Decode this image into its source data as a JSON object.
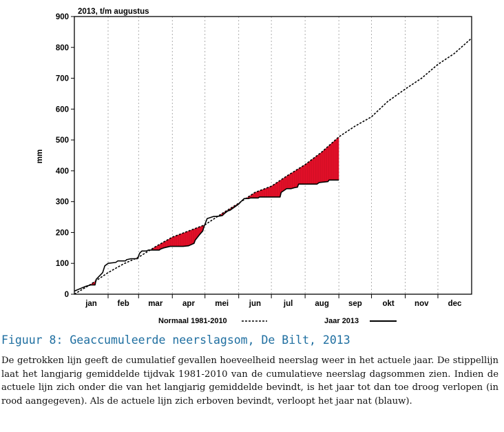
{
  "chart_data": {
    "type": "line",
    "title": "2013, t/m augustus",
    "ylabel": "mm",
    "xlabel": "",
    "ylim": [
      0,
      900
    ],
    "xlim": [
      0,
      365
    ],
    "yticks": [
      0,
      100,
      200,
      300,
      400,
      500,
      600,
      700,
      800,
      900
    ],
    "months": [
      "jan",
      "feb",
      "mar",
      "apr",
      "mei",
      "jun",
      "jul",
      "aug",
      "sep",
      "okt",
      "nov",
      "dec"
    ],
    "grid": true,
    "legend_position": "bottom",
    "deficit_color": "#e8102a",
    "series": [
      {
        "name": "Normaal 1981-2010",
        "style": "dashed",
        "x": [
          0,
          15,
          31,
          45,
          59,
          75,
          90,
          105,
          120,
          135,
          151,
          166,
          181,
          196,
          212,
          227,
          243,
          258,
          273,
          288,
          304,
          319,
          334,
          349,
          365
        ],
        "y": [
          0,
          32,
          70,
          98,
          120,
          155,
          185,
          205,
          225,
          260,
          295,
          330,
          350,
          385,
          420,
          460,
          510,
          545,
          575,
          625,
          665,
          700,
          745,
          780,
          830
        ]
      },
      {
        "name": "Jaar 2013",
        "style": "solid",
        "x": [
          0,
          10,
          15,
          19,
          20,
          26,
          28,
          31,
          38,
          40,
          47,
          48,
          52,
          58,
          60,
          62,
          66,
          68,
          70,
          75,
          78,
          79,
          82,
          88,
          95,
          100,
          105,
          110,
          111,
          115,
          118,
          119,
          122,
          128,
          130,
          133,
          136,
          138,
          141,
          143,
          147,
          151,
          153,
          156,
          160,
          162,
          169,
          170,
          175,
          180,
          182,
          189,
          190,
          195,
          199,
          202,
          205,
          206,
          210,
          215,
          223,
          225,
          233,
          234,
          243
        ],
        "y": [
          10,
          25,
          30,
          30,
          48,
          70,
          92,
          100,
          103,
          108,
          108,
          112,
          115,
          115,
          133,
          140,
          140,
          143,
          143,
          143,
          143,
          146,
          150,
          155,
          155,
          155,
          157,
          165,
          175,
          193,
          205,
          218,
          245,
          252,
          252,
          253,
          255,
          262,
          270,
          272,
          282,
          292,
          300,
          310,
          310,
          312,
          312,
          315,
          315,
          315,
          315,
          315,
          330,
          342,
          342,
          345,
          347,
          357,
          357,
          357,
          357,
          362,
          365,
          370,
          370
        ]
      }
    ]
  },
  "caption": {
    "title": "Figuur 8: Geaccumuleerde neerslagsom, De Bilt, 2013",
    "body": "De getrokken lijn geeft de cumulatief gevallen hoeveelheid neerslag weer in het actuele jaar. De stippellijn laat het langjarig gemiddelde tijdvak 1981-2010 van de cumulatieve neerslag dagsommen zien. Indien de actuele lijn zich onder die van het langjarig gemiddelde bevindt, is het jaar tot dan toe droog verlopen (in rood aangegeven). Als de actuele lijn zich erboven bevindt, verloopt het jaar nat (blauw)."
  }
}
